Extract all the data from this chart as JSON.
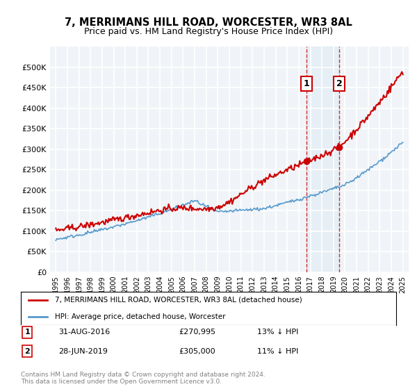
{
  "title": "7, MERRIMANS HILL ROAD, WORCESTER, WR3 8AL",
  "subtitle": "Price paid vs. HM Land Registry's House Price Index (HPI)",
  "legend_label_red": "7, MERRIMANS HILL ROAD, WORCESTER, WR3 8AL (detached house)",
  "legend_label_blue": "HPI: Average price, detached house, Worcester",
  "footnote": "Contains HM Land Registry data © Crown copyright and database right 2024.\nThis data is licensed under the Open Government Licence v3.0.",
  "annotation1_label": "1",
  "annotation1_date": "31-AUG-2016",
  "annotation1_price": "£270,995",
  "annotation1_hpi": "13% ↓ HPI",
  "annotation1_year": 2016.67,
  "annotation2_label": "2",
  "annotation2_date": "28-JUN-2019",
  "annotation2_price": "£305,000",
  "annotation2_hpi": "11% ↓ HPI",
  "annotation2_year": 2019.5,
  "table_row1": "1    31-AUG-2016    £270,995    13% ↓ HPI",
  "table_row2": "2    28-JUN-2019    £305,000    11% ↓ HPI",
  "red_color": "#cc0000",
  "blue_color": "#5599cc",
  "background_color": "#ffffff",
  "grid_color": "#cccccc",
  "annotation_box_color": "#cc0000",
  "dashed_line_color": "#cc0000",
  "ylim": [
    0,
    550000
  ],
  "yticks": [
    0,
    50000,
    100000,
    150000,
    200000,
    250000,
    300000,
    350000,
    400000,
    450000,
    500000
  ],
  "ytick_labels": [
    "£0",
    "£50K",
    "£100K",
    "£150K",
    "£200K",
    "£250K",
    "£300K",
    "£350K",
    "£400K",
    "£450K",
    "£500K"
  ],
  "xlim_start": 1994.5,
  "xlim_end": 2025.5,
  "xtick_years": [
    1995,
    1996,
    1997,
    1998,
    1999,
    2000,
    2001,
    2002,
    2003,
    2004,
    2005,
    2006,
    2007,
    2008,
    2009,
    2010,
    2011,
    2012,
    2013,
    2014,
    2015,
    2016,
    2017,
    2018,
    2019,
    2020,
    2021,
    2022,
    2023,
    2024,
    2025
  ]
}
